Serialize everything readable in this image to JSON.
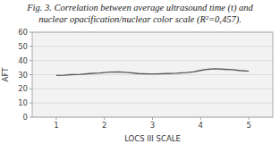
{
  "chart_data": {
    "type": "line",
    "title": "Fig. 3. Correlation between average ultrasound time (t) and",
    "subtitle": "nuclear opacification/nuclear color scale (R²=0,457).",
    "x_label": "LOCS III SCALE",
    "y_label": "AFT",
    "x": [
      1.0,
      1.15,
      1.3,
      1.5,
      1.7,
      1.9,
      2.1,
      2.3,
      2.5,
      2.7,
      2.9,
      3.1,
      3.3,
      3.5,
      3.7,
      3.85,
      4.0,
      4.15,
      4.3,
      4.5,
      4.65,
      4.8,
      5.0
    ],
    "values": [
      29.5,
      29.6,
      30.0,
      30.3,
      30.8,
      31.2,
      31.8,
      32.0,
      31.5,
      30.8,
      30.5,
      30.6,
      30.8,
      31.0,
      31.5,
      32.0,
      33.0,
      33.8,
      34.2,
      33.8,
      33.5,
      33.0,
      32.5
    ],
    "color": "#555555",
    "xlim": [
      0.5,
      5.5
    ],
    "ylim": [
      0,
      60
    ],
    "xticks": [
      1,
      2,
      3,
      4,
      5
    ],
    "yticks": [
      0,
      10,
      20,
      30,
      40,
      50,
      60
    ],
    "grid": true
  }
}
